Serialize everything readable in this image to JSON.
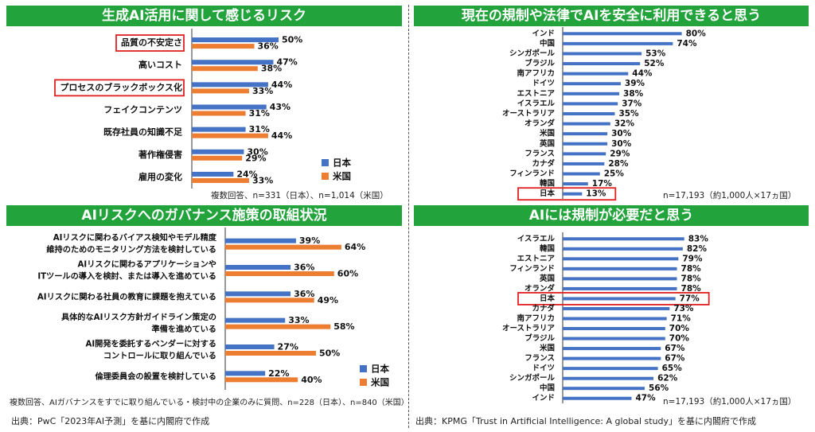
{
  "colors": {
    "japan": "#4472c4",
    "us": "#ed7d31",
    "title_bg": "#22a33c",
    "highlight": "#e02020"
  },
  "legend": {
    "japan": "日本",
    "us": "米国"
  },
  "panels": {
    "risk": {
      "title": "生成AI活用に関して感じるリスク",
      "note": "複数回答、n=331（日本）、n=1,014（米国）"
    },
    "governance": {
      "title": "AIリスクへのガバナンス施策の取組状況",
      "note": "複数回答、AIガバナンスをすでに取り組んでいる・検討中の企業のみに質問、n=228（日本）、n=840（米国）"
    },
    "safe_use": {
      "title": "現在の規制や法律でAIを安全に利用できると思う",
      "note": "n=17,193（約1,000人×17ヵ国）"
    },
    "regulation": {
      "title": "AIには規制が必要だと思う",
      "note": "n=17,193（約1,000人×17ヵ国）"
    }
  },
  "sources": {
    "left": "出典：PwC「2023年AI予測」を基に内閣府で作成",
    "right": "出典：KPMG「Trust in Artificial Intelligence: A global study」を基に内閣府で作成"
  },
  "chart_data": [
    {
      "type": "bar",
      "title": "生成AI活用に関して感じるリスク",
      "categories": [
        "品質の不安定さ",
        "高いコスト",
        "プロセスのブラックボックス化",
        "フェイクコンテンツ",
        "既存社員の知識不足",
        "著作権侵害",
        "雇用の変化"
      ],
      "series": [
        {
          "name": "日本",
          "values": [
            50,
            47,
            44,
            43,
            31,
            30,
            24
          ]
        },
        {
          "name": "米国",
          "values": [
            36,
            38,
            33,
            31,
            44,
            29,
            33
          ]
        }
      ],
      "unit": "%",
      "highlighted": [
        "品質の不安定さ",
        "プロセスのブラックボックス化"
      ],
      "legend": "bottom-right"
    },
    {
      "type": "bar",
      "title": "AIリスクへのガバナンス施策の取組状況",
      "categories": [
        [
          "AIリスクに関わるバイアス検知やモデル精度",
          "維持のためのモニタリング方法を検討している"
        ],
        [
          "AIリスクに関わるアプリケーションや",
          "ITツールの導入を検討、または導入を進めている"
        ],
        [
          "AIリスクに関わる社員の教育に課題を抱えている"
        ],
        [
          "具体的なAIリスク方針ガイドライン策定の",
          "準備を進めている"
        ],
        [
          "AI開発を委託するベンダーに対する",
          "コントロールに取り組んでいる"
        ],
        [
          "倫理委員会の設置を検討している"
        ]
      ],
      "series": [
        {
          "name": "日本",
          "values": [
            39,
            36,
            36,
            33,
            27,
            22
          ]
        },
        {
          "name": "米国",
          "values": [
            64,
            60,
            49,
            58,
            50,
            40
          ]
        }
      ],
      "unit": "%",
      "legend": "bottom-right"
    },
    {
      "type": "bar",
      "title": "現在の規制や法律でAIを安全に利用できると思う",
      "categories": [
        "インド",
        "中国",
        "シンガポール",
        "ブラジル",
        "南アフリカ",
        "ドイツ",
        "エストニア",
        "イスラエル",
        "オーストラリア",
        "オランダ",
        "米国",
        "英国",
        "フランス",
        "カナダ",
        "フィンランド",
        "韓国",
        "日本"
      ],
      "values": [
        80,
        74,
        53,
        52,
        44,
        39,
        38,
        37,
        35,
        32,
        30,
        30,
        29,
        28,
        25,
        17,
        13
      ],
      "unit": "%",
      "highlighted": [
        "日本"
      ]
    },
    {
      "type": "bar",
      "title": "AIには規制が必要だと思う",
      "categories": [
        "イスラエル",
        "韓国",
        "エストニア",
        "フィンランド",
        "英国",
        "オランダ",
        "日本",
        "カナダ",
        "南アフリカ",
        "オーストラリア",
        "ブラジル",
        "米国",
        "フランス",
        "ドイツ",
        "シンガポール",
        "中国",
        "インド"
      ],
      "values": [
        83,
        82,
        79,
        78,
        78,
        78,
        77,
        73,
        71,
        70,
        70,
        67,
        67,
        65,
        62,
        56,
        47
      ],
      "unit": "%",
      "highlighted": [
        "日本"
      ]
    }
  ]
}
